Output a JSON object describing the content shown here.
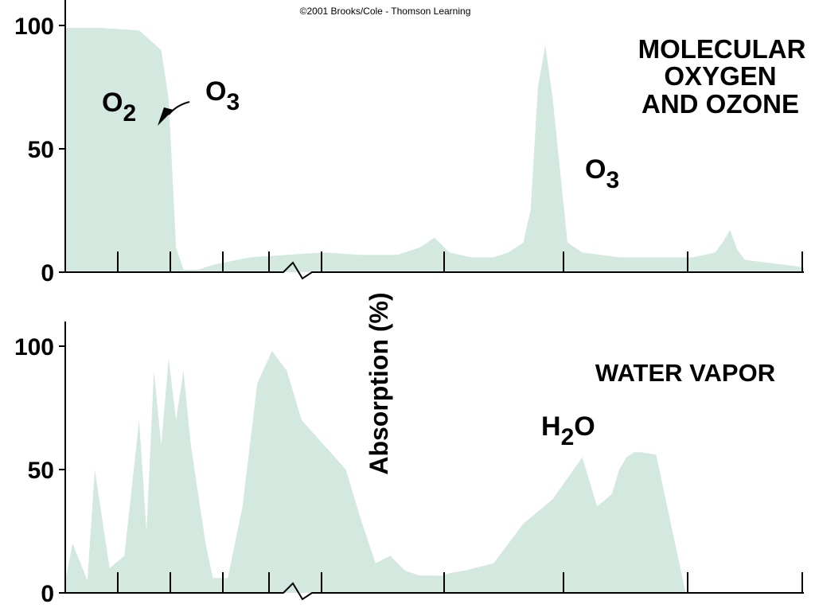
{
  "credit": "©2001 Brooks/Cole - Thomson Learning",
  "ylabel": "Absorption (%)",
  "colors": {
    "fill": "#d3e8df",
    "ink": "#000000"
  },
  "chart_data": [
    {
      "type": "area",
      "title_lines": [
        "MOLECULAR",
        "OXYGEN",
        "AND OZONE"
      ],
      "ylim": [
        0,
        100
      ],
      "yticks": [
        "100",
        "50",
        "0"
      ],
      "ytick_values": [
        100,
        50,
        0
      ],
      "axis_break": true,
      "grid": false,
      "annotations": [
        {
          "base": "O",
          "sub": "2",
          "label": "O2"
        },
        {
          "base": "O",
          "sub": "3",
          "label": "O3",
          "arrow": true
        },
        {
          "base": "O",
          "sub": "3",
          "label": "O3"
        }
      ],
      "x": [
        0.0,
        0.05,
        0.1,
        0.13,
        0.14,
        0.15,
        0.16,
        0.18,
        0.2,
        0.25,
        0.3,
        0.35,
        0.4,
        0.45,
        0.48,
        0.5,
        0.52,
        0.55,
        0.58,
        0.6,
        0.62,
        0.63,
        0.64,
        0.65,
        0.66,
        0.68,
        0.7,
        0.75,
        0.8,
        0.85,
        0.88,
        0.89,
        0.9,
        0.91,
        0.92,
        1.0
      ],
      "values": [
        99,
        99,
        98,
        90,
        70,
        10,
        1,
        1,
        3,
        6,
        7,
        8,
        7,
        7,
        10,
        14,
        8,
        6,
        6,
        8,
        12,
        25,
        75,
        92,
        70,
        12,
        8,
        6,
        6,
        6,
        8,
        12,
        17,
        9,
        5,
        2
      ]
    },
    {
      "type": "area",
      "title": "WATER VAPOR",
      "ylim": [
        0,
        100
      ],
      "yticks": [
        "100",
        "50",
        "0"
      ],
      "ytick_values": [
        100,
        50,
        0
      ],
      "axis_break": true,
      "grid": false,
      "annotations": [
        {
          "base": "H",
          "sub": "2",
          "tail": "O",
          "label": "H2O"
        }
      ],
      "x": [
        0.0,
        0.01,
        0.03,
        0.04,
        0.06,
        0.08,
        0.1,
        0.11,
        0.12,
        0.13,
        0.14,
        0.15,
        0.16,
        0.17,
        0.18,
        0.19,
        0.2,
        0.22,
        0.24,
        0.26,
        0.28,
        0.3,
        0.32,
        0.35,
        0.38,
        0.4,
        0.42,
        0.44,
        0.46,
        0.48,
        0.49,
        0.5,
        0.51,
        0.52,
        0.54,
        0.58,
        0.62,
        0.66,
        0.7,
        0.72,
        0.74,
        0.75,
        0.76,
        0.77,
        0.78,
        0.8,
        0.84,
        0.88,
        0.91,
        0.94,
        0.95,
        1.0
      ],
      "values": [
        5,
        20,
        5,
        50,
        10,
        15,
        70,
        25,
        90,
        60,
        95,
        70,
        90,
        60,
        40,
        20,
        6,
        6,
        35,
        85,
        98,
        90,
        70,
        60,
        50,
        30,
        12,
        15,
        9,
        7,
        7,
        7,
        7,
        8,
        9,
        12,
        28,
        38,
        55,
        35,
        40,
        50,
        55,
        57,
        57,
        56,
        0,
        0,
        0,
        0,
        0,
        0
      ]
    }
  ]
}
